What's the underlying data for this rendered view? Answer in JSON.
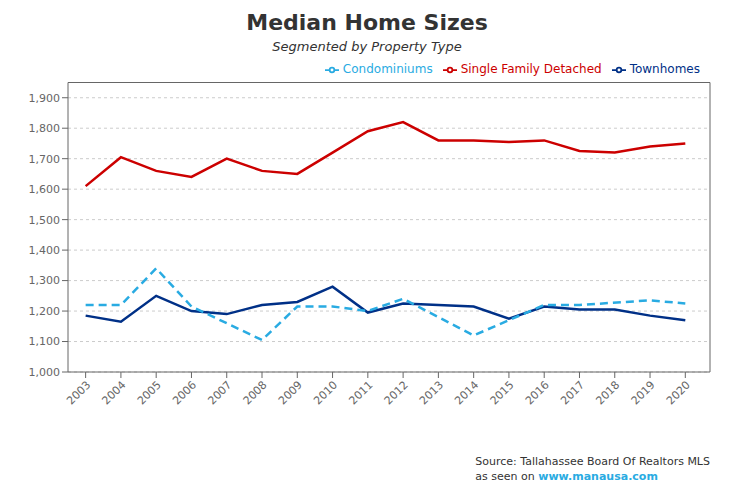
{
  "chart_data": {
    "type": "line",
    "title": "Median Home Sizes",
    "subtitle": "Segmented by Property Type",
    "x": [
      2003,
      2004,
      2005,
      2006,
      2007,
      2008,
      2009,
      2010,
      2011,
      2012,
      2013,
      2014,
      2015,
      2016,
      2017,
      2018,
      2019,
      2020
    ],
    "series": [
      {
        "name": "Single Family Detached",
        "color": "#cc0000",
        "values": [
          1610,
          1705,
          1660,
          1640,
          1700,
          1660,
          1650,
          1720,
          1790,
          1820,
          1760,
          1760,
          1755,
          1760,
          1725,
          1720,
          1740,
          1750
        ]
      },
      {
        "name": "Townhomes",
        "color": "#003087",
        "values": [
          1185,
          1165,
          1250,
          1200,
          1190,
          1220,
          1230,
          1280,
          1195,
          1225,
          1220,
          1215,
          1175,
          1215,
          1205,
          1205,
          1185,
          1170
        ]
      },
      {
        "name": "Condominiums",
        "color": "#29abe2",
        "line_style": "dashed",
        "values": [
          1220,
          1220,
          1340,
          1215,
          null,
          1105,
          1215,
          1215,
          1200,
          1240,
          null,
          1120,
          null,
          1220,
          1220,
          null,
          1235,
          1225
        ]
      }
    ],
    "xlim": [
      2002.5,
      2020.7
    ],
    "xticks": [
      2003,
      2004,
      2005,
      2006,
      2007,
      2008,
      2009,
      2010,
      2011,
      2012,
      2013,
      2014,
      2015,
      2016,
      2017,
      2018,
      2019,
      2020
    ],
    "ylim": [
      1000,
      1950
    ],
    "yticks": [
      {
        "value": 1000,
        "label": "1,000"
      },
      {
        "value": 1100,
        "label": "1,100"
      },
      {
        "value": 1200,
        "label": "1,200"
      },
      {
        "value": 1300,
        "label": "1,300"
      },
      {
        "value": 1400,
        "label": "1,400"
      },
      {
        "value": 1500,
        "label": "1,500"
      },
      {
        "value": 1600,
        "label": "1,600"
      },
      {
        "value": 1700,
        "label": "1,700"
      },
      {
        "value": 1800,
        "label": "1,800"
      },
      {
        "value": 1900,
        "label": "1,900"
      }
    ],
    "grid": true,
    "legend": "upper right",
    "annotations": [
      "Source: Tallahassee Board Of Realtors MLS",
      "as seen on ",
      "www.manausa.com"
    ]
  }
}
